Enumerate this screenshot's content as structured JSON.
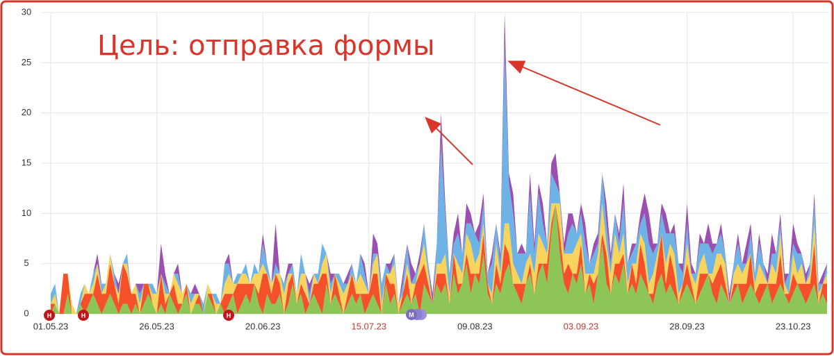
{
  "chart_data": {
    "type": "stacked-area",
    "annotation": "Цель: отправка формы",
    "event_labels": [
      "Н",
      "Н",
      "Н",
      "М"
    ],
    "categories": [
      "01.05.23",
      null,
      null,
      null,
      null,
      null,
      null,
      null,
      null,
      null,
      null,
      null,
      null,
      null,
      null,
      null,
      null,
      null,
      null,
      null,
      null,
      null,
      null,
      null,
      null,
      "26.05.23",
      null,
      null,
      null,
      null,
      null,
      null,
      null,
      null,
      null,
      null,
      null,
      null,
      null,
      null,
      null,
      null,
      null,
      null,
      null,
      null,
      null,
      null,
      null,
      null,
      "20.06.23",
      null,
      null,
      null,
      null,
      null,
      null,
      null,
      null,
      null,
      null,
      null,
      null,
      null,
      null,
      null,
      null,
      null,
      null,
      null,
      null,
      null,
      null,
      null,
      null,
      "15.07.23",
      null,
      null,
      null,
      null,
      null,
      null,
      null,
      null,
      null,
      null,
      null,
      null,
      null,
      null,
      null,
      null,
      null,
      null,
      null,
      null,
      null,
      null,
      null,
      null,
      "09.08.23",
      null,
      null,
      null,
      null,
      null,
      null,
      null,
      null,
      null,
      null,
      null,
      null,
      null,
      null,
      null,
      null,
      null,
      null,
      null,
      null,
      null,
      null,
      null,
      null,
      "03.09.23",
      null,
      null,
      null,
      null,
      null,
      null,
      null,
      null,
      null,
      null,
      null,
      null,
      null,
      null,
      null,
      null,
      null,
      null,
      null,
      null,
      null,
      null,
      null,
      null,
      "28.09.23",
      null,
      null,
      null,
      null,
      null,
      null,
      null,
      null,
      null,
      null,
      null,
      null,
      null,
      null,
      null,
      null,
      null,
      null,
      null,
      null,
      null,
      null,
      null,
      null,
      "23.10.23",
      null,
      null,
      null,
      null,
      null,
      null,
      null,
      null
    ],
    "label_colors": {
      "default": "#333333",
      "holiday": "#c0392b"
    },
    "holiday_labels": [
      "15.07.23",
      "03.09.23"
    ],
    "series": [
      {
        "color": "#8dc657",
        "values": [
          0,
          1,
          0,
          0,
          2,
          0,
          0,
          1,
          0,
          1,
          2,
          1,
          0,
          1,
          2,
          1,
          0,
          1,
          1,
          0,
          1,
          0,
          1,
          2,
          1,
          0,
          1,
          0,
          2,
          1,
          0,
          1,
          2,
          0,
          1,
          1,
          0,
          2,
          1,
          0,
          1,
          0,
          1,
          2,
          0,
          1,
          2,
          1,
          3,
          1,
          0,
          2,
          1,
          1,
          2,
          0,
          1,
          3,
          1,
          2,
          0,
          1,
          2,
          1,
          0,
          3,
          1,
          2,
          1,
          0,
          1,
          2,
          1,
          2,
          0,
          1,
          2,
          1,
          0,
          3,
          1,
          2,
          0,
          1,
          2,
          1,
          2,
          0,
          3,
          2,
          1,
          3,
          2,
          3,
          1,
          4,
          2,
          3,
          5,
          2,
          4,
          3,
          6,
          2,
          1,
          3,
          2,
          4,
          5,
          3,
          2,
          1,
          3,
          4,
          2,
          4,
          5,
          3,
          8,
          11,
          6,
          3,
          2,
          4,
          3,
          5,
          2,
          3,
          1,
          4,
          7,
          3,
          2,
          4,
          3,
          5,
          2,
          3,
          2,
          4,
          3,
          2,
          1,
          3,
          4,
          2,
          3,
          2,
          1,
          2,
          3,
          2,
          1,
          2,
          3,
          4,
          2,
          1,
          3,
          2,
          1,
          2,
          3,
          1,
          2,
          3,
          2,
          1,
          2,
          3,
          1,
          2,
          3,
          2,
          1,
          2,
          3,
          2,
          1,
          2,
          3,
          1,
          2,
          1
        ]
      },
      {
        "color": "#f4502a",
        "values": [
          1,
          0,
          0,
          4,
          2,
          0,
          0,
          0,
          2,
          1,
          0,
          3,
          2,
          1,
          3,
          2,
          1,
          4,
          3,
          2,
          1,
          0,
          2,
          1,
          0,
          0,
          3,
          1,
          0,
          2,
          1,
          0,
          1,
          0,
          0,
          1,
          0,
          0,
          1,
          0,
          0,
          2,
          1,
          0,
          3,
          2,
          1,
          2,
          0,
          1,
          4,
          2,
          1,
          3,
          1,
          0,
          2,
          1,
          0,
          1,
          2,
          0,
          1,
          2,
          4,
          1,
          0,
          2,
          1,
          0,
          1,
          2,
          1,
          0,
          2,
          1,
          2,
          3,
          0,
          1,
          2,
          1,
          0,
          1,
          2,
          0,
          1,
          4,
          2,
          1,
          0,
          1,
          2,
          1,
          0,
          2,
          1,
          0,
          1,
          2,
          0,
          1,
          2,
          1,
          0,
          2,
          1,
          3,
          1,
          0,
          1,
          2,
          0,
          1,
          0,
          1,
          0,
          2,
          1,
          0,
          2,
          1,
          3,
          0,
          1,
          2,
          0,
          1,
          2,
          0,
          1,
          3,
          0,
          1,
          2,
          1,
          0,
          2,
          1,
          3,
          2,
          0,
          1,
          2,
          4,
          1,
          3,
          2,
          0,
          1,
          2,
          1,
          0,
          2,
          1,
          0,
          1,
          3,
          2,
          1,
          0,
          1,
          0,
          2,
          1,
          3,
          0,
          2,
          1,
          0,
          2,
          1,
          3,
          0,
          1,
          2,
          0,
          1,
          2,
          1,
          4,
          0,
          1,
          2
        ]
      },
      {
        "color": "#f9d45c",
        "values": [
          0,
          1,
          0,
          0,
          0,
          1,
          0,
          0,
          1,
          0,
          1,
          1,
          0,
          1,
          1,
          0,
          1,
          0,
          1,
          0,
          1,
          1,
          0,
          0,
          1,
          2,
          0,
          1,
          0,
          1,
          2,
          1,
          0,
          1,
          1,
          0,
          0,
          1,
          0,
          1,
          0,
          1,
          2,
          1,
          0,
          1,
          1,
          0,
          1,
          2,
          1,
          0,
          1,
          0,
          1,
          2,
          1,
          0,
          1,
          1,
          2,
          0,
          1,
          0,
          1,
          2,
          1,
          0,
          1,
          2,
          1,
          0,
          1,
          2,
          1,
          0,
          1,
          2,
          1,
          0,
          1,
          2,
          1,
          0,
          1,
          2,
          0,
          1,
          2,
          1,
          0,
          1,
          1,
          2,
          1,
          0,
          2,
          1,
          2,
          3,
          1,
          2,
          1,
          0,
          1,
          2,
          1,
          2,
          3,
          2,
          1,
          0,
          2,
          1,
          2,
          3,
          2,
          1,
          2,
          0,
          3,
          2,
          1,
          2,
          3,
          1,
          2,
          0,
          1,
          2,
          3,
          1,
          2,
          3,
          1,
          2,
          1,
          0,
          2,
          1,
          2,
          1,
          2,
          1,
          0,
          2,
          1,
          2,
          1,
          0,
          2,
          1,
          2,
          1,
          2,
          0,
          1,
          2,
          1,
          2,
          0,
          1,
          2,
          1,
          2,
          0,
          1,
          2,
          1,
          0,
          2,
          1,
          2,
          1,
          0,
          2,
          1,
          2,
          0,
          1,
          2,
          1,
          0,
          1
        ]
      },
      {
        "color": "#6db3e6",
        "values": [
          1,
          1,
          0,
          0,
          0,
          0,
          0,
          1,
          0,
          0,
          1,
          0,
          1,
          0,
          0,
          1,
          0,
          0,
          1,
          0,
          0,
          1,
          0,
          0,
          1,
          0,
          0,
          1,
          0,
          0,
          1,
          0,
          0,
          1,
          0,
          0,
          1,
          0,
          0,
          1,
          0,
          2,
          1,
          0,
          1,
          0,
          1,
          0,
          1,
          0,
          2,
          1,
          0,
          1,
          0,
          1,
          0,
          1,
          0,
          2,
          0,
          1,
          0,
          1,
          2,
          0,
          1,
          0,
          1,
          1,
          0,
          1,
          0,
          2,
          1,
          0,
          1,
          0,
          2,
          1,
          0,
          1,
          0,
          1,
          2,
          0,
          1,
          0,
          2,
          1,
          0,
          2,
          12,
          4,
          2,
          1,
          3,
          2,
          1,
          2,
          3,
          1,
          2,
          1,
          3,
          2,
          1,
          18,
          4,
          5,
          2,
          3,
          1,
          6,
          2,
          4,
          2,
          1,
          3,
          2,
          1,
          0,
          2,
          3,
          1,
          2,
          3,
          1,
          2,
          1,
          3,
          2,
          1,
          2,
          1,
          3,
          2,
          1,
          2,
          1,
          3,
          4,
          2,
          1,
          2,
          3,
          1,
          2,
          3,
          1,
          2,
          0,
          1,
          2,
          1,
          3,
          2,
          1,
          2,
          1,
          0,
          1,
          2,
          1,
          0,
          2,
          1,
          2,
          1,
          0,
          1,
          2,
          1,
          0,
          2,
          1,
          2,
          1,
          0,
          1,
          2,
          1,
          0,
          1
        ]
      },
      {
        "color": "#9b4fb0",
        "values": [
          0,
          0,
          0,
          0,
          0,
          0,
          0,
          0,
          0,
          0,
          0,
          1,
          0,
          0,
          0,
          0,
          1,
          0,
          0,
          0,
          0,
          1,
          0,
          0,
          0,
          0,
          3,
          1,
          0,
          0,
          1,
          0,
          0,
          0,
          1,
          0,
          0,
          0,
          0,
          0,
          0,
          0,
          1,
          0,
          0,
          0,
          0,
          0,
          0,
          0,
          1,
          0,
          0,
          4,
          0,
          0,
          1,
          0,
          0,
          0,
          0,
          1,
          0,
          0,
          0,
          0,
          1,
          0,
          0,
          0,
          1,
          0,
          0,
          0,
          1,
          0,
          2,
          1,
          0,
          0,
          1,
          0,
          0,
          1,
          0,
          2,
          0,
          1,
          0,
          0,
          1,
          0,
          3,
          1,
          0,
          1,
          2,
          0,
          2,
          1,
          0,
          2,
          1,
          0,
          1,
          0,
          1,
          3,
          1,
          2,
          0,
          1,
          0,
          2,
          1,
          1,
          2,
          0,
          1,
          3,
          0,
          1,
          2,
          1,
          0,
          1,
          2,
          0,
          1,
          1,
          0,
          2,
          1,
          0,
          1,
          2,
          0,
          1,
          0,
          1,
          2,
          3,
          1,
          0,
          1,
          2,
          0,
          1,
          0,
          1,
          2,
          1,
          0,
          1,
          0,
          2,
          1,
          0,
          1,
          0,
          1,
          0,
          1,
          0,
          2,
          1,
          0,
          1,
          0,
          1,
          2,
          0,
          1,
          1,
          0,
          2,
          1,
          0,
          1,
          0,
          1,
          0,
          1,
          0
        ]
      }
    ],
    "ylim": [
      0,
      30
    ],
    "yticks": [
      0,
      5,
      10,
      15,
      20,
      25,
      30
    ],
    "grid": true
  }
}
